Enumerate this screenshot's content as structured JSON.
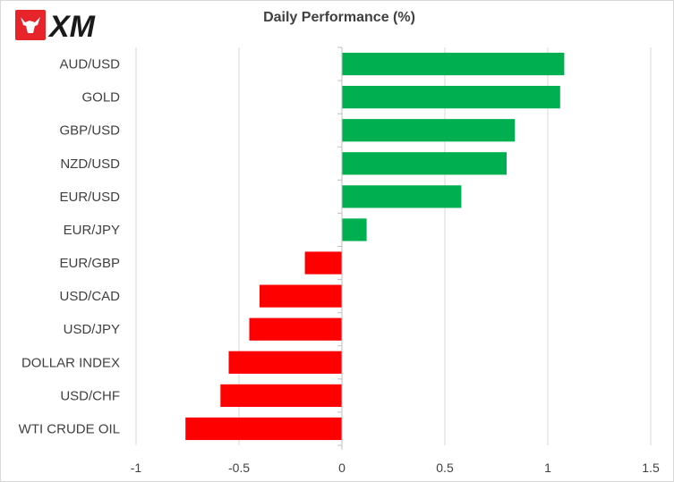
{
  "brand": {
    "name": "XM",
    "logo_color": "#e8242b"
  },
  "chart_data": {
    "type": "bar",
    "orientation": "horizontal",
    "title": "Daily Performance  (%)",
    "categories": [
      "AUD/USD",
      "GOLD",
      "GBP/USD",
      "NZD/USD",
      "EUR/USD",
      "EUR/JPY",
      "EUR/GBP",
      "USD/CAD",
      "USD/JPY",
      "DOLLAR INDEX",
      "USD/CHF",
      "WTI CRUDE OIL"
    ],
    "values": [
      1.08,
      1.06,
      0.84,
      0.8,
      0.58,
      0.12,
      -0.18,
      -0.4,
      -0.45,
      -0.55,
      -0.59,
      -0.76
    ],
    "xlim": [
      -1,
      1.5
    ],
    "xticks": [
      -1,
      -0.5,
      0,
      0.5,
      1,
      1.5
    ],
    "xtick_labels": [
      "-1",
      "-0.5",
      "0",
      "0.5",
      "1",
      "1.5"
    ],
    "grid": "vertical",
    "colors": {
      "positive": "#00b050",
      "negative": "#ff0000",
      "grid": "#d9d9d9",
      "axis": "#bfbfbf"
    }
  }
}
